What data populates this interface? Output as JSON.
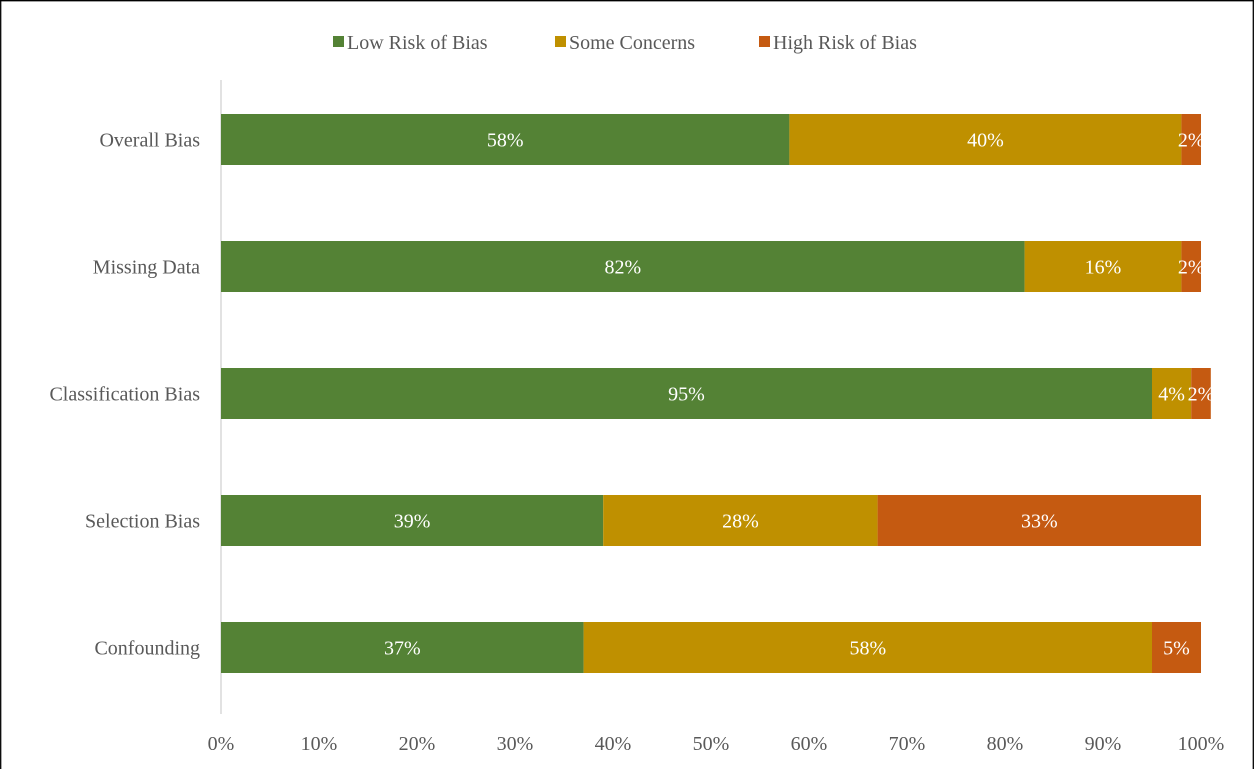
{
  "chart_data": {
    "type": "bar",
    "orientation": "horizontal",
    "stacked": true,
    "percent": true,
    "categories": [
      "Overall Bias",
      "Missing Data",
      "Classification Bias",
      "Selection Bias",
      "Confounding"
    ],
    "series": [
      {
        "name": "Low Risk of Bias",
        "color": "#548235",
        "values": [
          58,
          82,
          95,
          39,
          37
        ],
        "labels": [
          "58%",
          "82%",
          "95%",
          "39%",
          "37%"
        ]
      },
      {
        "name": "Some Concerns",
        "color": "#bf9000",
        "values": [
          40,
          16,
          4,
          28,
          58
        ],
        "labels": [
          "40%",
          "16%",
          "4%",
          "28%",
          "58%"
        ]
      },
      {
        "name": "High Risk of Bias",
        "color": "#c55a11",
        "values": [
          2,
          2,
          2,
          33,
          5
        ],
        "labels": [
          "2%",
          "2%",
          "2%",
          "33%",
          "5%"
        ]
      }
    ],
    "xlim": [
      0,
      100
    ],
    "xticks": [
      "0%",
      "10%",
      "20%",
      "30%",
      "40%",
      "50%",
      "60%",
      "70%",
      "80%",
      "90%",
      "100%"
    ],
    "legend_position": "top",
    "grid": false
  }
}
